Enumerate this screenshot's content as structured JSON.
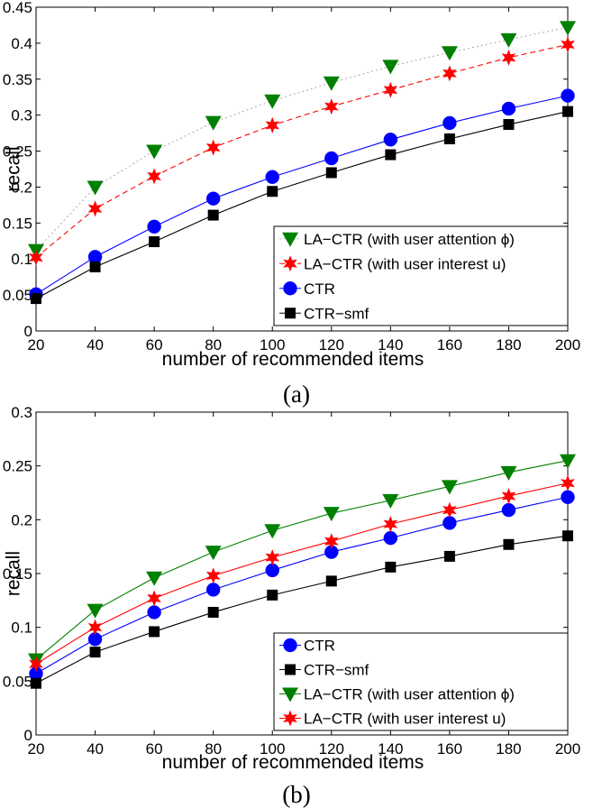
{
  "chart_data": [
    {
      "type": "line",
      "caption": "(a)",
      "xlabel": "number of recommended items",
      "ylabel": "recall",
      "xlim": [
        20,
        200
      ],
      "ylim": [
        0,
        0.45
      ],
      "x": [
        20,
        40,
        60,
        80,
        100,
        120,
        140,
        160,
        180,
        200
      ],
      "xticks": [
        "20",
        "40",
        "60",
        "80",
        "100",
        "120",
        "140",
        "160",
        "180",
        "200"
      ],
      "yticks": [
        "0",
        "0.05",
        "0.1",
        "0.15",
        "0.2",
        "0.25",
        "0.3",
        "0.35",
        "0.4",
        "0.45"
      ],
      "legend_position": "bottom-right",
      "grid": false,
      "series": [
        {
          "name": "LA−CTR (with user attention ϕ)",
          "color": "#008000",
          "marker": "triangle-down",
          "line": "dotted",
          "line_color": "#b0b0b0",
          "values": [
            0.112,
            0.2,
            0.25,
            0.29,
            0.32,
            0.345,
            0.368,
            0.387,
            0.405,
            0.422
          ]
        },
        {
          "name": "LA−CTR (with user interest u)",
          "color": "#ff0000",
          "marker": "star",
          "line": "dashed",
          "line_color": "#ff0000",
          "values": [
            0.102,
            0.17,
            0.215,
            0.255,
            0.286,
            0.312,
            0.335,
            0.358,
            0.38,
            0.398
          ]
        },
        {
          "name": "CTR",
          "color": "#0000ff",
          "marker": "circle",
          "line": "solid",
          "line_color": "#0000ff",
          "values": [
            0.051,
            0.103,
            0.145,
            0.184,
            0.214,
            0.24,
            0.266,
            0.289,
            0.309,
            0.327
          ]
        },
        {
          "name": "CTR−smf",
          "color": "#000000",
          "marker": "square",
          "line": "solid",
          "line_color": "#000000",
          "values": [
            0.045,
            0.089,
            0.124,
            0.161,
            0.194,
            0.22,
            0.245,
            0.267,
            0.287,
            0.305
          ]
        }
      ]
    },
    {
      "type": "line",
      "caption": "(b)",
      "xlabel": "number of recommended items",
      "ylabel": "recall",
      "xlim": [
        20,
        200
      ],
      "ylim": [
        0,
        0.3
      ],
      "x": [
        20,
        40,
        60,
        80,
        100,
        120,
        140,
        160,
        180,
        200
      ],
      "xticks": [
        "20",
        "40",
        "60",
        "80",
        "100",
        "120",
        "140",
        "160",
        "180",
        "200"
      ],
      "yticks": [
        "0",
        "0.05",
        "0.1",
        "0.15",
        "0.2",
        "0.25",
        "0.3"
      ],
      "legend_position": "bottom-right",
      "grid": false,
      "series": [
        {
          "name": "CTR",
          "color": "#0000ff",
          "marker": "circle",
          "line": "solid",
          "line_color": "#0000ff",
          "values": [
            0.057,
            0.089,
            0.114,
            0.135,
            0.153,
            0.17,
            0.183,
            0.197,
            0.209,
            0.221
          ]
        },
        {
          "name": "CTR−smf",
          "color": "#000000",
          "marker": "square",
          "line": "solid",
          "line_color": "#000000",
          "values": [
            0.048,
            0.077,
            0.096,
            0.114,
            0.13,
            0.143,
            0.156,
            0.166,
            0.177,
            0.185
          ]
        },
        {
          "name": "LA−CTR (with user attention ϕ)",
          "color": "#008000",
          "marker": "triangle-down",
          "line": "solid",
          "line_color": "#008000",
          "values": [
            0.07,
            0.116,
            0.146,
            0.17,
            0.19,
            0.206,
            0.218,
            0.231,
            0.244,
            0.255
          ]
        },
        {
          "name": "LA−CTR (with user interest u)",
          "color": "#ff0000",
          "marker": "star",
          "line": "solid",
          "line_color": "#ff0000",
          "values": [
            0.066,
            0.1,
            0.127,
            0.148,
            0.165,
            0.18,
            0.196,
            0.209,
            0.222,
            0.234
          ]
        }
      ]
    }
  ]
}
